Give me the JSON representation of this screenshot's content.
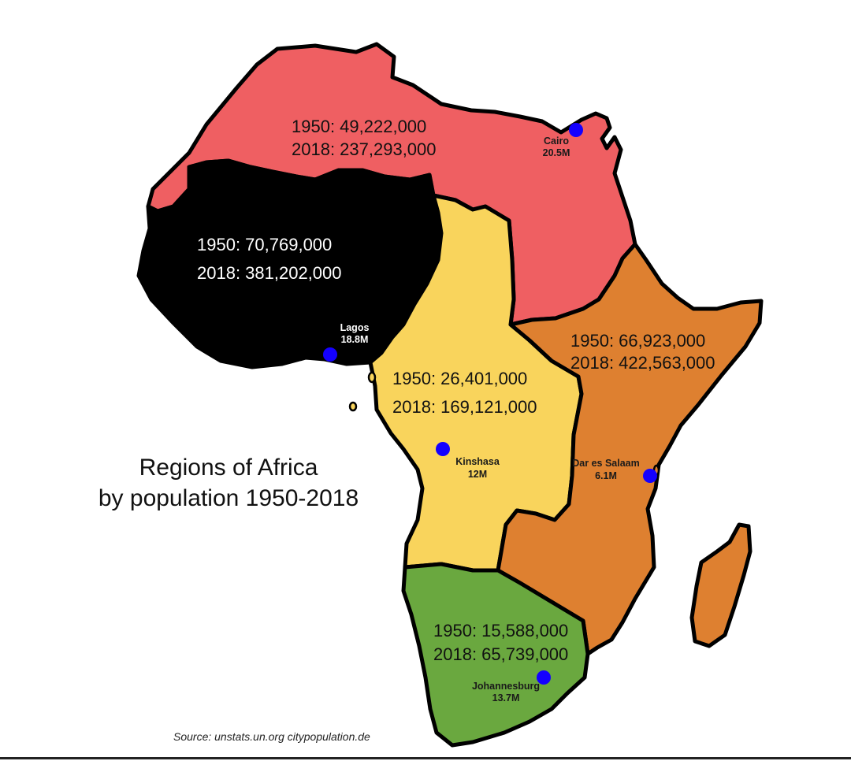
{
  "title_line1": "Regions of Africa",
  "title_line2": "by population 1950-2018",
  "source": "Source: unstats.un.org citypopulation.de",
  "colors": {
    "north": "#ef5f62",
    "west": "#000000",
    "central": "#f9d45c",
    "east": "#de8030",
    "south": "#6aa83f",
    "city_dot": "#1400ff"
  },
  "regions": {
    "north": {
      "pop_1950": "1950: 49,222,000",
      "pop_2018": "2018: 237,293,000"
    },
    "west": {
      "pop_1950": "1950: 70,769,000",
      "pop_2018": "2018: 381,202,000"
    },
    "central": {
      "pop_1950": "1950: 26,401,000",
      "pop_2018": "2018: 169,121,000"
    },
    "east": {
      "pop_1950": "1950: 66,923,000",
      "pop_2018": "2018: 422,563,000"
    },
    "south": {
      "pop_1950": "1950: 15,588,000",
      "pop_2018": "2018: 65,739,000"
    }
  },
  "cities": {
    "cairo": {
      "name": "Cairo",
      "pop": "20.5M"
    },
    "lagos": {
      "name": "Lagos",
      "pop": "18.8M"
    },
    "kinshasa": {
      "name": "Kinshasa",
      "pop": "12M"
    },
    "dar": {
      "name": "Dar es Salaam",
      "pop": "6.1M"
    },
    "johannesburg": {
      "name": "Johannesburg",
      "pop": "13.7M"
    }
  }
}
